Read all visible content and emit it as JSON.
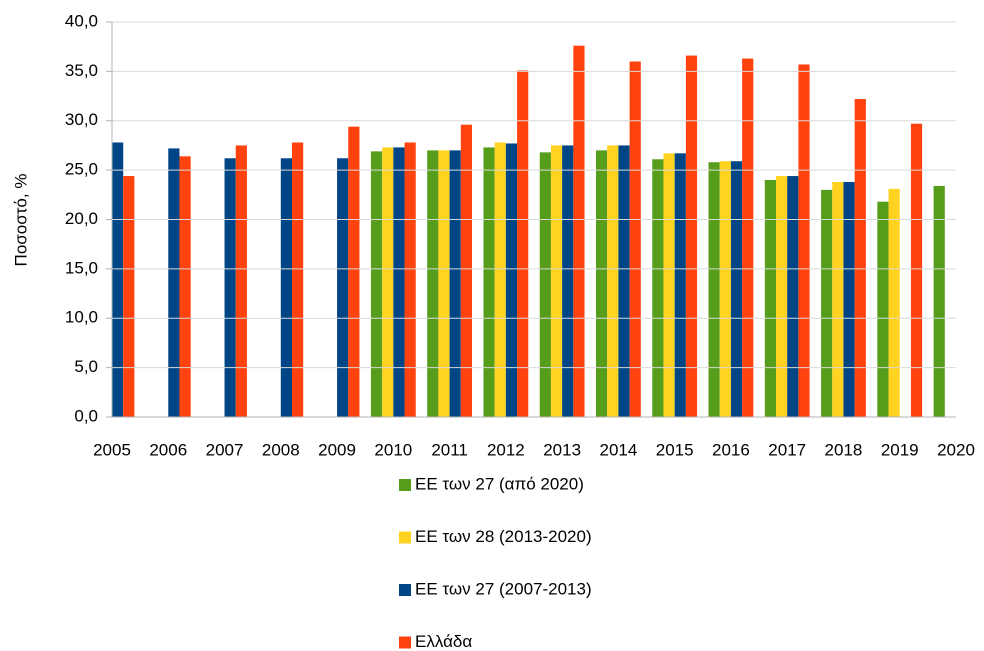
{
  "chart_data": {
    "type": "bar",
    "y_label": "Ποσοστό, %",
    "categories": [
      "2005",
      "2006",
      "2007",
      "2008",
      "2009",
      "2010",
      "2011",
      "2012",
      "2013",
      "2014",
      "2015",
      "2016",
      "2017",
      "2018",
      "2019",
      "2020"
    ],
    "series": [
      {
        "name": "ΕΕ των 27 (από 2020)",
        "color": "#579d1c",
        "values": [
          null,
          null,
          null,
          null,
          null,
          26.9,
          27.0,
          27.3,
          26.8,
          27.0,
          26.1,
          25.8,
          24.0,
          23.0,
          21.8,
          23.4
        ]
      },
      {
        "name": "ΕΕ των 28 (2013-2020)",
        "color": "#ffd320",
        "values": [
          null,
          null,
          null,
          null,
          null,
          27.3,
          27.0,
          27.8,
          27.5,
          27.5,
          26.7,
          25.9,
          24.4,
          23.8,
          23.1,
          null
        ]
      },
      {
        "name": "ΕΕ των 27 (2007-2013)",
        "color": "#004586",
        "values": [
          27.8,
          27.2,
          26.2,
          26.2,
          26.2,
          27.3,
          27.0,
          27.7,
          27.5,
          27.5,
          26.7,
          25.9,
          24.4,
          23.8,
          null,
          null
        ]
      },
      {
        "name": "Ελλάδα",
        "color": "#ff420e",
        "values": [
          24.4,
          26.4,
          27.5,
          27.8,
          29.4,
          27.8,
          29.6,
          35.1,
          37.6,
          36.0,
          36.6,
          36.3,
          35.7,
          32.2,
          29.7,
          null
        ]
      }
    ],
    "ylim": [
      0,
      40
    ],
    "yticks": [
      {
        "value": 0,
        "label": "0,0"
      },
      {
        "value": 5,
        "label": "5,0"
      },
      {
        "value": 10,
        "label": "10,0"
      },
      {
        "value": 15,
        "label": "15,0"
      },
      {
        "value": 20,
        "label": "20,0"
      },
      {
        "value": 25,
        "label": "25,0"
      },
      {
        "value": 30,
        "label": "30,0"
      },
      {
        "value": 35,
        "label": "35,0"
      },
      {
        "value": 40,
        "label": "40,0"
      }
    ],
    "grid": true
  }
}
